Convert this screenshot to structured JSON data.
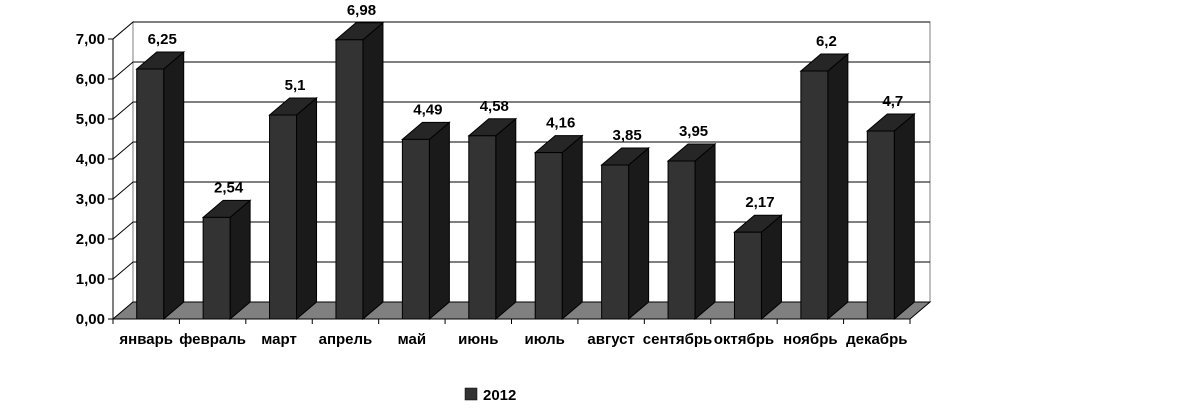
{
  "chart_data": {
    "type": "bar",
    "title": "",
    "xlabel": "",
    "ylabel": "",
    "ylim": [
      0,
      7
    ],
    "yticks": [
      "0,00",
      "1,00",
      "2,00",
      "3,00",
      "4,00",
      "5,00",
      "6,00",
      "7,00"
    ],
    "categories": [
      "январь",
      "февраль",
      "март",
      "апрель",
      "май",
      "июнь",
      "июль",
      "август",
      "сентябрь",
      "октябрь",
      "ноябрь",
      "декабрь"
    ],
    "series": [
      {
        "name": "2012",
        "values": [
          6.25,
          2.54,
          5.1,
          6.98,
          4.49,
          4.58,
          4.16,
          3.85,
          3.95,
          2.17,
          6.2,
          4.7
        ],
        "labels": [
          "6,25",
          "2,54",
          "5,1",
          "6,98",
          "4,49",
          "4,58",
          "4,16",
          "3,85",
          "3,95",
          "2,17",
          "6,2",
          "4,7"
        ],
        "color": "#333333"
      }
    ],
    "grid": true,
    "legend_position": "bottom",
    "style": "3d"
  }
}
